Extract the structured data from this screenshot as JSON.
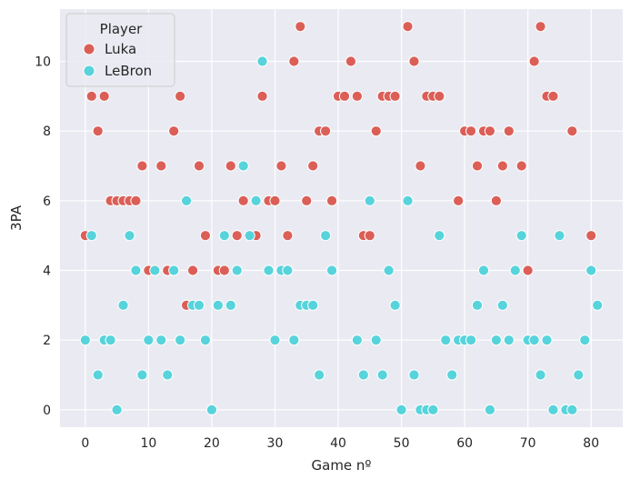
{
  "chart_data": {
    "type": "scatter",
    "title": "",
    "xlabel": "Game nº",
    "ylabel": "3PA",
    "xlim": [
      -4,
      85
    ],
    "ylim": [
      -0.5,
      11.5
    ],
    "xticks": [
      0,
      10,
      20,
      30,
      40,
      50,
      60,
      70,
      80
    ],
    "yticks": [
      0,
      2,
      4,
      6,
      8,
      10
    ],
    "grid": true,
    "background": "#eaeaf2",
    "legend": {
      "title": "Player",
      "position": "top-left"
    },
    "series": [
      {
        "name": "Luka",
        "color": "#db5f57",
        "points": [
          [
            0,
            5
          ],
          [
            1,
            9
          ],
          [
            2,
            8
          ],
          [
            3,
            9
          ],
          [
            4,
            6
          ],
          [
            5,
            6
          ],
          [
            6,
            6
          ],
          [
            7,
            6
          ],
          [
            8,
            6
          ],
          [
            9,
            7
          ],
          [
            10,
            4
          ],
          [
            12,
            7
          ],
          [
            13,
            4
          ],
          [
            14,
            8
          ],
          [
            15,
            9
          ],
          [
            16,
            3
          ],
          [
            17,
            4
          ],
          [
            18,
            7
          ],
          [
            19,
            5
          ],
          [
            21,
            4
          ],
          [
            22,
            4
          ],
          [
            23,
            7
          ],
          [
            24,
            5
          ],
          [
            25,
            6
          ],
          [
            27,
            5
          ],
          [
            28,
            9
          ],
          [
            29,
            6
          ],
          [
            30,
            6
          ],
          [
            31,
            7
          ],
          [
            32,
            5
          ],
          [
            33,
            10
          ],
          [
            34,
            11
          ],
          [
            35,
            6
          ],
          [
            36,
            7
          ],
          [
            37,
            8
          ],
          [
            38,
            8
          ],
          [
            39,
            6
          ],
          [
            40,
            9
          ],
          [
            41,
            9
          ],
          [
            42,
            10
          ],
          [
            43,
            9
          ],
          [
            44,
            5
          ],
          [
            45,
            5
          ],
          [
            46,
            8
          ],
          [
            47,
            9
          ],
          [
            48,
            9
          ],
          [
            49,
            9
          ],
          [
            51,
            11
          ],
          [
            52,
            10
          ],
          [
            53,
            7
          ],
          [
            54,
            9
          ],
          [
            55,
            9
          ],
          [
            56,
            9
          ],
          [
            59,
            6
          ],
          [
            60,
            8
          ],
          [
            61,
            8
          ],
          [
            62,
            7
          ],
          [
            63,
            8
          ],
          [
            64,
            8
          ],
          [
            65,
            6
          ],
          [
            66,
            7
          ],
          [
            67,
            8
          ],
          [
            69,
            7
          ],
          [
            70,
            4
          ],
          [
            71,
            10
          ],
          [
            72,
            11
          ],
          [
            73,
            9
          ],
          [
            74,
            9
          ],
          [
            77,
            8
          ],
          [
            80,
            5
          ]
        ]
      },
      {
        "name": "LeBron",
        "color": "#57d3db",
        "points": [
          [
            0,
            2
          ],
          [
            1,
            5
          ],
          [
            2,
            1
          ],
          [
            3,
            2
          ],
          [
            4,
            2
          ],
          [
            5,
            0
          ],
          [
            6,
            3
          ],
          [
            7,
            5
          ],
          [
            8,
            4
          ],
          [
            9,
            1
          ],
          [
            10,
            2
          ],
          [
            11,
            4
          ],
          [
            12,
            2
          ],
          [
            13,
            1
          ],
          [
            14,
            4
          ],
          [
            15,
            2
          ],
          [
            16,
            6
          ],
          [
            17,
            3
          ],
          [
            18,
            3
          ],
          [
            19,
            2
          ],
          [
            20,
            0
          ],
          [
            21,
            3
          ],
          [
            22,
            5
          ],
          [
            23,
            3
          ],
          [
            24,
            4
          ],
          [
            25,
            7
          ],
          [
            26,
            5
          ],
          [
            27,
            6
          ],
          [
            28,
            10
          ],
          [
            29,
            4
          ],
          [
            30,
            2
          ],
          [
            31,
            4
          ],
          [
            32,
            4
          ],
          [
            33,
            2
          ],
          [
            34,
            3
          ],
          [
            35,
            3
          ],
          [
            36,
            3
          ],
          [
            37,
            1
          ],
          [
            38,
            5
          ],
          [
            39,
            4
          ],
          [
            43,
            2
          ],
          [
            44,
            1
          ],
          [
            45,
            6
          ],
          [
            46,
            2
          ],
          [
            47,
            1
          ],
          [
            48,
            4
          ],
          [
            49,
            3
          ],
          [
            50,
            0
          ],
          [
            51,
            6
          ],
          [
            52,
            1
          ],
          [
            53,
            0
          ],
          [
            54,
            0
          ],
          [
            55,
            0
          ],
          [
            56,
            5
          ],
          [
            57,
            2
          ],
          [
            58,
            1
          ],
          [
            59,
            2
          ],
          [
            60,
            2
          ],
          [
            61,
            2
          ],
          [
            62,
            3
          ],
          [
            63,
            4
          ],
          [
            64,
            0
          ],
          [
            65,
            2
          ],
          [
            66,
            3
          ],
          [
            67,
            2
          ],
          [
            68,
            4
          ],
          [
            69,
            5
          ],
          [
            70,
            2
          ],
          [
            71,
            2
          ],
          [
            72,
            1
          ],
          [
            73,
            2
          ],
          [
            74,
            0
          ],
          [
            75,
            5
          ],
          [
            76,
            0
          ],
          [
            77,
            0
          ],
          [
            78,
            1
          ],
          [
            79,
            2
          ],
          [
            80,
            4
          ],
          [
            81,
            3
          ]
        ]
      }
    ]
  }
}
